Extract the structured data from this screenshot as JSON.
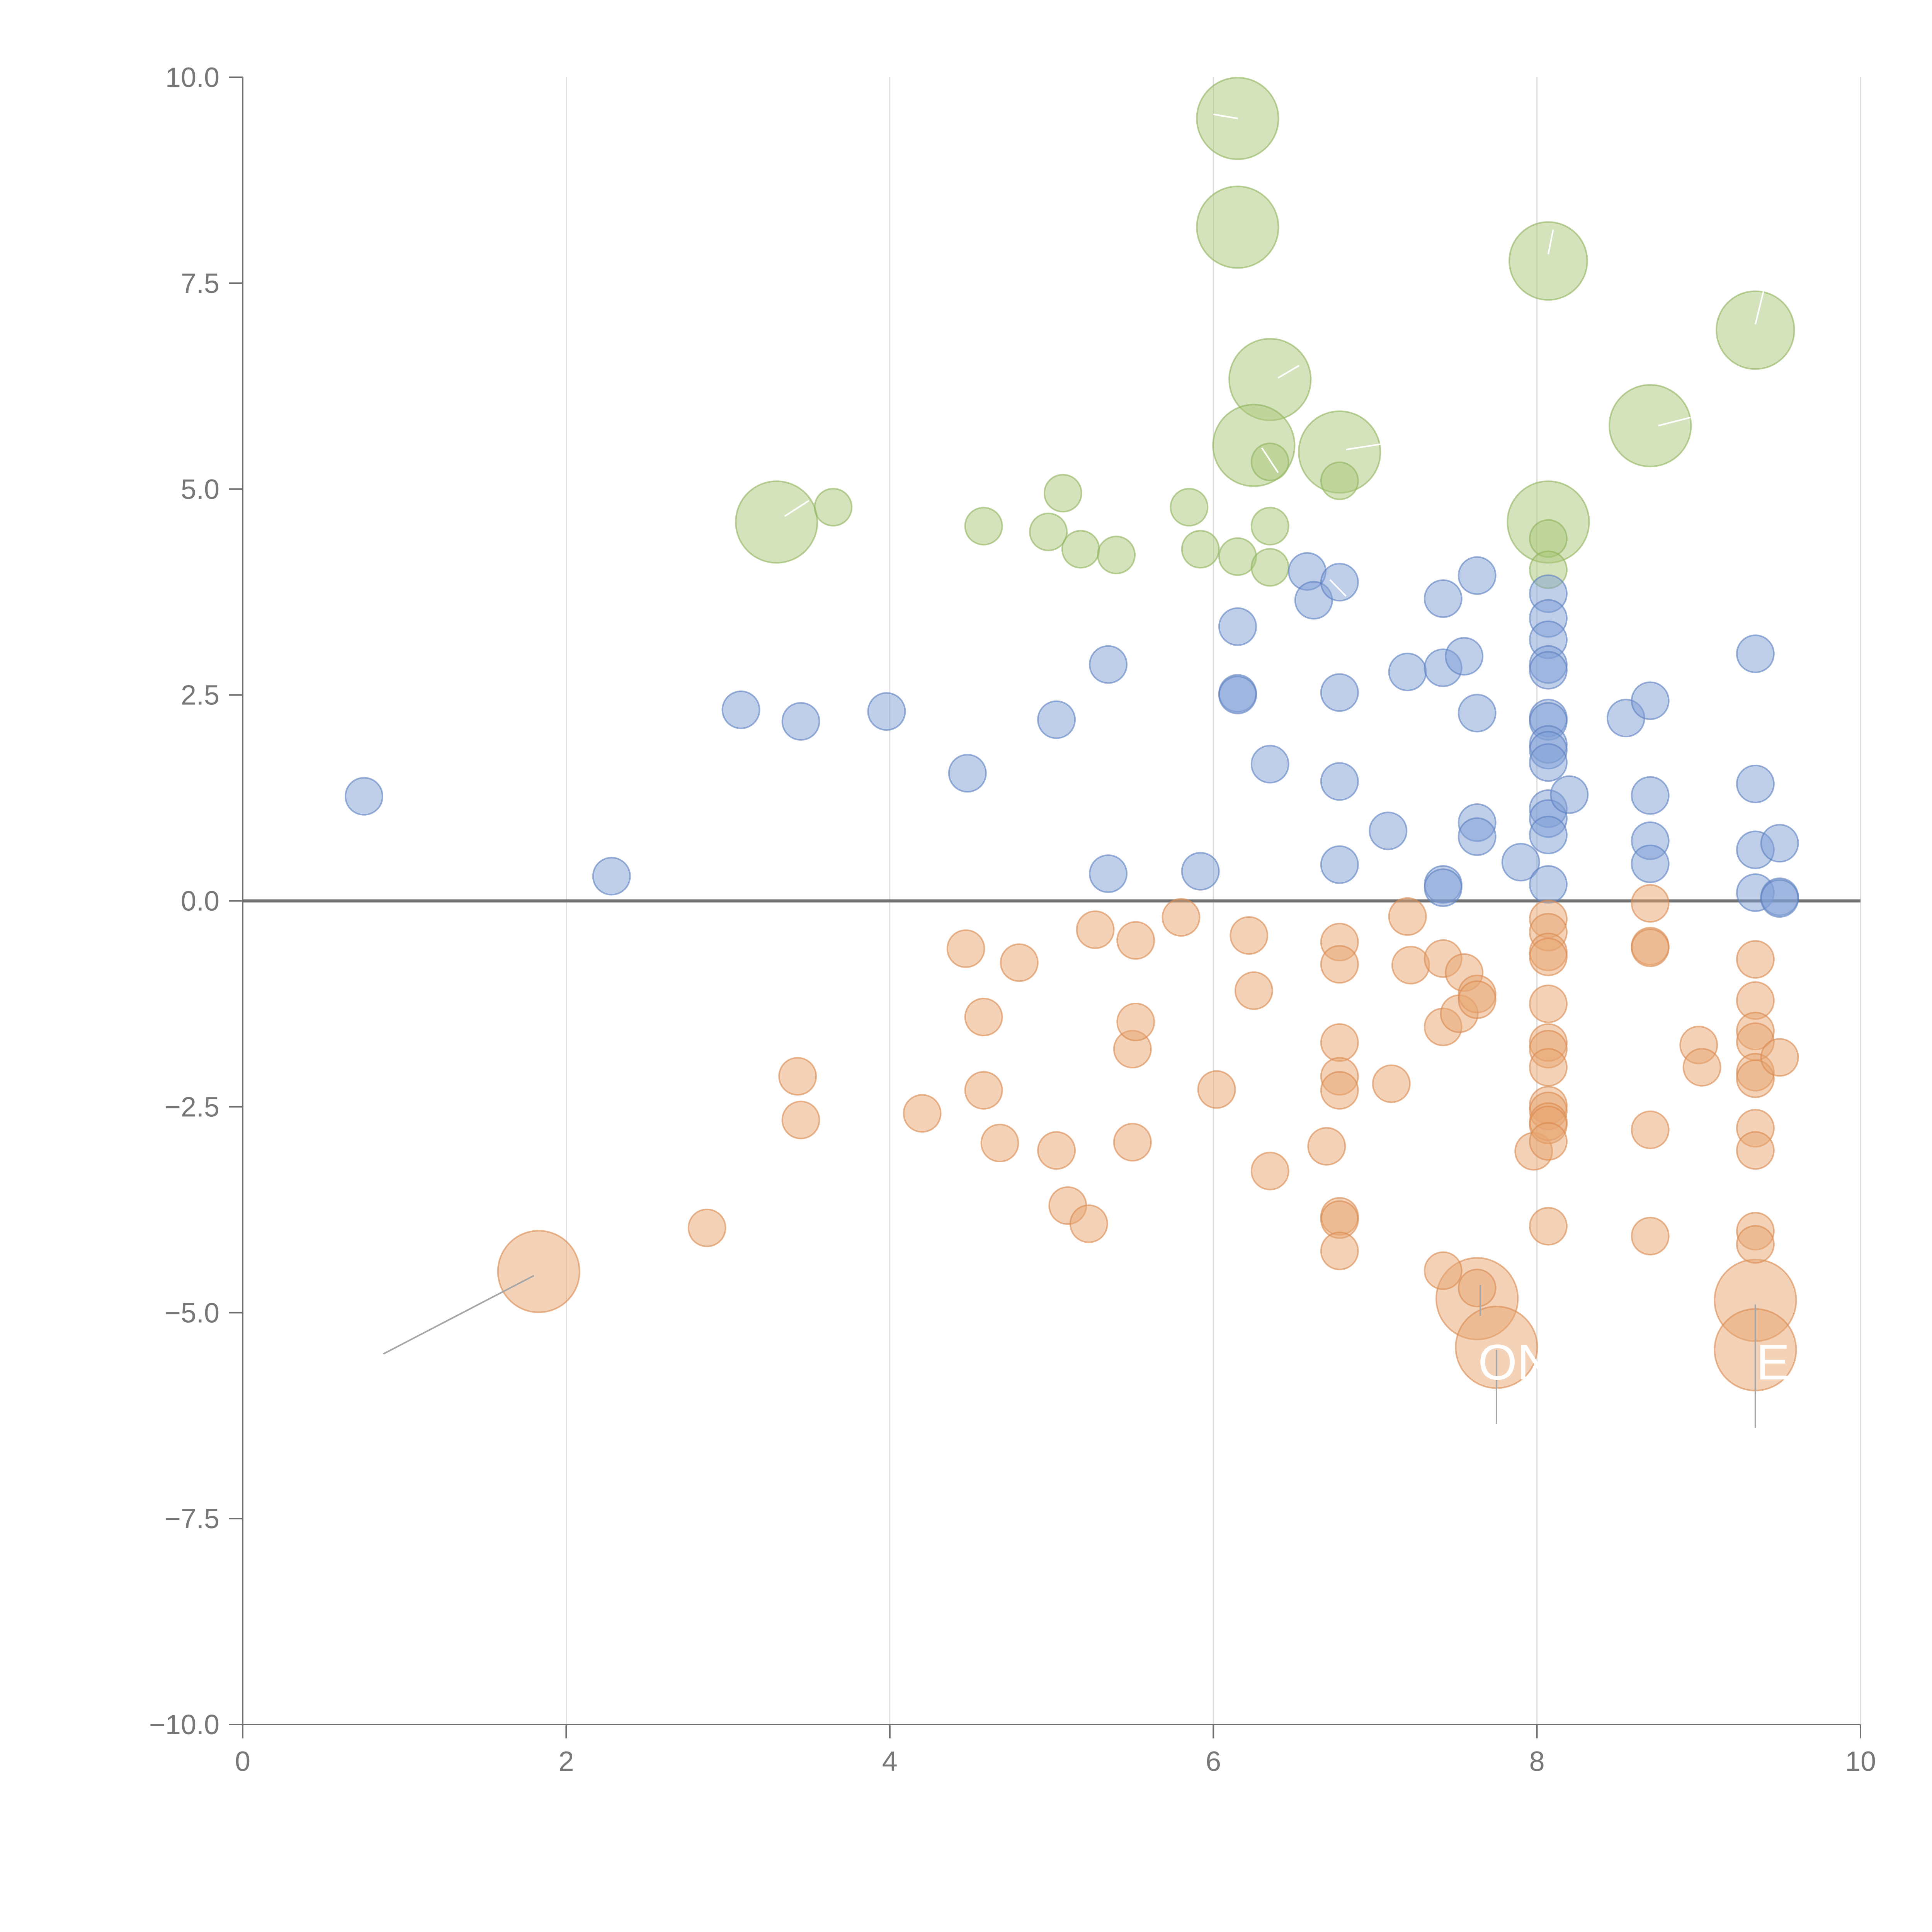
{
  "chart_data": {
    "type": "scatter",
    "title": "",
    "xlabel": "",
    "ylabel": "",
    "xlim": [
      0,
      10
    ],
    "ylim": [
      -10,
      10
    ],
    "grid": {
      "vertical": true,
      "horizontal": false
    },
    "x_ticks": [
      0,
      2,
      4,
      6,
      8,
      10
    ],
    "y_ticks": [
      10,
      7.5,
      5,
      2.5,
      0,
      -2.5,
      -5,
      -7.5,
      -10
    ],
    "x_tick_labels": [
      "0",
      "2",
      "4",
      "6",
      "8",
      "10"
    ],
    "y_tick_labels": [
      "10.0",
      "7.5",
      "5.0",
      "2.5",
      "0.0",
      "−2.5",
      "−5.0",
      "−7.5",
      "−10.0"
    ],
    "reference_line_y": 0,
    "series": [
      {
        "name": "green",
        "color": "#a9c779",
        "stroke": "#8fb35c",
        "points": [
          [
            6.15,
            9.5,
            2.2
          ],
          [
            6.15,
            8.18,
            2.2
          ],
          [
            8.07,
            7.77,
            2.1
          ],
          [
            9.35,
            6.93,
            2.1
          ],
          [
            6.35,
            6.33,
            2.2
          ],
          [
            8.7,
            5.77,
            2.2
          ],
          [
            6.25,
            5.53,
            2.2
          ],
          [
            6.78,
            5.45,
            2.2
          ],
          [
            3.3,
            4.6,
            2.2
          ],
          [
            8.07,
            4.6,
            2.2
          ],
          [
            6.35,
            5.33,
            1.0
          ],
          [
            6.78,
            5.1,
            1.0
          ],
          [
            3.65,
            4.78,
            1.0
          ],
          [
            5.07,
            4.95,
            1.0
          ],
          [
            5.85,
            4.78,
            1.0
          ],
          [
            4.58,
            4.55,
            1.0
          ],
          [
            4.98,
            4.48,
            1.0
          ],
          [
            5.18,
            4.27,
            1.0
          ],
          [
            5.4,
            4.2,
            1.0
          ],
          [
            5.92,
            4.27,
            1.0
          ],
          [
            6.15,
            4.18,
            1.0
          ],
          [
            6.35,
            4.55,
            1.0
          ],
          [
            6.35,
            4.05,
            1.0
          ],
          [
            8.07,
            4.4,
            1.0
          ],
          [
            8.07,
            4.02,
            1.0
          ]
        ]
      },
      {
        "name": "blue",
        "color": "#7f9fd6",
        "stroke": "#5c7fc0",
        "points": [
          [
            0.75,
            1.27,
            1.0
          ],
          [
            2.28,
            0.3,
            1.0
          ],
          [
            3.08,
            2.32,
            1.0
          ],
          [
            3.45,
            2.18,
            1.0
          ],
          [
            3.98,
            2.3,
            1.0
          ],
          [
            4.48,
            1.55,
            1.0
          ],
          [
            5.03,
            2.2,
            1.0
          ],
          [
            5.35,
            2.87,
            1.0
          ],
          [
            5.35,
            0.33,
            1.0
          ],
          [
            5.92,
            0.36,
            1.0
          ],
          [
            6.15,
            3.33,
            1.0
          ],
          [
            6.15,
            2.52,
            1.0
          ],
          [
            6.15,
            2.5,
            1.0
          ],
          [
            6.35,
            1.66,
            1.0
          ],
          [
            6.58,
            4.0,
            1.0
          ],
          [
            6.62,
            3.65,
            1.0
          ],
          [
            6.78,
            3.87,
            1.0
          ],
          [
            6.78,
            2.53,
            1.0
          ],
          [
            6.78,
            1.45,
            1.0
          ],
          [
            6.78,
            0.44,
            1.0
          ],
          [
            7.08,
            0.85,
            1.0
          ],
          [
            7.2,
            2.78,
            1.0
          ],
          [
            7.42,
            3.67,
            1.0
          ],
          [
            7.42,
            2.83,
            1.0
          ],
          [
            7.42,
            0.2,
            1.0
          ],
          [
            7.42,
            0.16,
            1.0
          ],
          [
            7.55,
            2.97,
            1.0
          ],
          [
            7.63,
            3.95,
            1.0
          ],
          [
            7.63,
            2.28,
            1.0
          ],
          [
            7.63,
            0.95,
            1.0
          ],
          [
            7.63,
            0.78,
            1.0
          ],
          [
            7.9,
            0.47,
            1.0
          ],
          [
            8.07,
            3.73,
            1.0
          ],
          [
            8.07,
            3.43,
            1.0
          ],
          [
            8.07,
            3.17,
            1.0
          ],
          [
            8.07,
            2.87,
            1.0
          ],
          [
            8.07,
            2.8,
            1.0
          ],
          [
            8.07,
            2.22,
            1.0
          ],
          [
            8.07,
            2.18,
            1.0
          ],
          [
            8.07,
            1.9,
            1.0
          ],
          [
            8.07,
            1.83,
            1.0
          ],
          [
            8.07,
            1.68,
            1.0
          ],
          [
            8.07,
            1.12,
            1.0
          ],
          [
            8.07,
            1.0,
            1.0
          ],
          [
            8.07,
            0.8,
            1.0
          ],
          [
            8.07,
            0.2,
            1.0
          ],
          [
            8.2,
            1.29,
            1.0
          ],
          [
            8.55,
            2.22,
            1.0
          ],
          [
            8.7,
            2.43,
            1.0
          ],
          [
            8.7,
            1.28,
            1.0
          ],
          [
            8.7,
            0.73,
            1.0
          ],
          [
            8.7,
            0.45,
            1.0
          ],
          [
            9.35,
            3.0,
            1.0
          ],
          [
            9.35,
            1.42,
            1.0
          ],
          [
            9.35,
            0.62,
            1.0
          ],
          [
            9.35,
            0.1,
            1.0
          ],
          [
            9.5,
            0.7,
            1.0
          ],
          [
            9.5,
            0.05,
            1.0
          ],
          [
            9.5,
            0.03,
            1.0
          ]
        ]
      },
      {
        "name": "orange",
        "color": "#e8a671",
        "stroke": "#d9894f",
        "points": [
          [
            1.83,
            -4.5,
            2.2
          ],
          [
            7.63,
            -4.83,
            2.2
          ],
          [
            7.75,
            -5.42,
            2.2
          ],
          [
            9.35,
            -4.85,
            2.2
          ],
          [
            9.35,
            -5.45,
            2.2
          ],
          [
            2.87,
            -3.97,
            1.0
          ],
          [
            3.43,
            -2.13,
            1.0
          ],
          [
            3.45,
            -2.66,
            1.0
          ],
          [
            4.2,
            -2.58,
            1.0
          ],
          [
            4.47,
            -0.58,
            1.0
          ],
          [
            4.58,
            -1.41,
            1.0
          ],
          [
            4.58,
            -2.3,
            1.0
          ],
          [
            4.68,
            -2.94,
            1.0
          ],
          [
            4.8,
            -0.75,
            1.0
          ],
          [
            5.03,
            -3.03,
            1.0
          ],
          [
            5.1,
            -3.7,
            1.0
          ],
          [
            5.23,
            -3.92,
            1.0
          ],
          [
            5.27,
            -0.35,
            1.0
          ],
          [
            5.5,
            -2.93,
            1.0
          ],
          [
            5.5,
            -1.8,
            1.0
          ],
          [
            5.52,
            -1.47,
            1.0
          ],
          [
            5.52,
            -0.48,
            1.0
          ],
          [
            5.8,
            -0.2,
            1.0
          ],
          [
            6.02,
            -2.29,
            1.0
          ],
          [
            6.22,
            -0.42,
            1.0
          ],
          [
            6.25,
            -1.09,
            1.0
          ],
          [
            6.35,
            -3.28,
            1.0
          ],
          [
            6.7,
            -2.98,
            1.0
          ],
          [
            6.78,
            -0.5,
            1.0
          ],
          [
            6.78,
            -0.77,
            1.0
          ],
          [
            6.78,
            -1.72,
            1.0
          ],
          [
            6.78,
            -2.13,
            1.0
          ],
          [
            6.78,
            -2.3,
            1.0
          ],
          [
            6.78,
            -3.83,
            1.0
          ],
          [
            6.78,
            -3.87,
            1.0
          ],
          [
            6.78,
            -4.25,
            1.0
          ],
          [
            7.1,
            -2.22,
            1.0
          ],
          [
            7.2,
            -0.19,
            1.0
          ],
          [
            7.22,
            -0.78,
            1.0
          ],
          [
            7.42,
            -0.7,
            1.0
          ],
          [
            7.42,
            -1.53,
            1.0
          ],
          [
            7.42,
            -4.49,
            1.0
          ],
          [
            7.52,
            -1.37,
            1.0
          ],
          [
            7.55,
            -0.87,
            1.0
          ],
          [
            7.63,
            -1.13,
            1.0
          ],
          [
            7.63,
            -1.2,
            1.0
          ],
          [
            7.63,
            -4.7,
            1.0
          ],
          [
            7.98,
            -3.04,
            1.0
          ],
          [
            8.07,
            -0.22,
            1.0
          ],
          [
            8.07,
            -0.38,
            1.0
          ],
          [
            8.07,
            -0.62,
            1.0
          ],
          [
            8.07,
            -0.68,
            1.0
          ],
          [
            8.07,
            -1.25,
            1.0
          ],
          [
            8.07,
            -1.72,
            1.0
          ],
          [
            8.07,
            -1.8,
            1.0
          ],
          [
            8.07,
            -2.02,
            1.0
          ],
          [
            8.07,
            -2.48,
            1.0
          ],
          [
            8.07,
            -2.55,
            1.0
          ],
          [
            8.07,
            -2.68,
            1.0
          ],
          [
            8.07,
            -2.72,
            1.0
          ],
          [
            8.07,
            -2.92,
            1.0
          ],
          [
            8.07,
            -3.95,
            1.0
          ],
          [
            8.7,
            -0.03,
            1.0
          ],
          [
            8.7,
            -0.55,
            1.0
          ],
          [
            8.7,
            -0.57,
            1.0
          ],
          [
            8.7,
            -2.78,
            1.0
          ],
          [
            8.7,
            -4.07,
            1.0
          ],
          [
            9.0,
            -1.75,
            1.0
          ],
          [
            9.02,
            -2.02,
            1.0
          ],
          [
            9.35,
            -0.71,
            1.0
          ],
          [
            9.35,
            -1.21,
            1.0
          ],
          [
            9.35,
            -1.58,
            1.0
          ],
          [
            9.35,
            -1.71,
            1.0
          ],
          [
            9.35,
            -2.08,
            1.0
          ],
          [
            9.35,
            -2.16,
            1.0
          ],
          [
            9.35,
            -2.76,
            1.0
          ],
          [
            9.35,
            -3.03,
            1.0
          ],
          [
            9.35,
            -4.01,
            1.0
          ],
          [
            9.35,
            -4.17,
            1.0
          ],
          [
            9.5,
            -1.9,
            1.0
          ]
        ]
      }
    ],
    "callouts": [
      {
        "from": [
          1.8,
          -4.55
        ],
        "to": [
          0.87,
          -5.5
        ],
        "color": "#a6a6a6",
        "text": ""
      },
      {
        "from": [
          7.65,
          -4.85
        ],
        "to": [
          7.65,
          -4.85
        ],
        "color": "#a6a6a6",
        "text": ""
      },
      {
        "from": [
          7.75,
          -5.45
        ],
        "to": [
          7.75,
          -6.35
        ],
        "color": "#a6a6a6",
        "text": ""
      },
      {
        "from": [
          9.35,
          -4.9
        ],
        "to": [
          9.35,
          -6.4
        ],
        "color": "#a6a6a6",
        "text": ""
      },
      {
        "from": [
          3.35,
          4.67
        ],
        "to": [
          3.5,
          4.86
        ],
        "color": "#ffffff",
        "text": ""
      },
      {
        "from": [
          6.0,
          9.55
        ],
        "to": [
          6.15,
          9.5
        ],
        "color": "#ffffff",
        "text": ""
      },
      {
        "from": [
          8.07,
          7.85
        ],
        "to": [
          8.1,
          8.15
        ],
        "color": "#ffffff",
        "text": ""
      },
      {
        "from": [
          9.35,
          7.0
        ],
        "to": [
          9.4,
          7.4
        ],
        "color": "#ffffff",
        "text": ""
      },
      {
        "from": [
          6.4,
          6.35
        ],
        "to": [
          6.53,
          6.5
        ],
        "color": "#ffffff",
        "text": ""
      },
      {
        "from": [
          8.75,
          5.77
        ],
        "to": [
          8.95,
          5.87
        ],
        "color": "#ffffff",
        "text": ""
      },
      {
        "from": [
          6.3,
          5.5
        ],
        "to": [
          6.4,
          5.2
        ],
        "color": "#ffffff",
        "text": ""
      },
      {
        "from": [
          6.82,
          5.48
        ],
        "to": [
          7.05,
          5.55
        ],
        "color": "#ffffff",
        "text": ""
      },
      {
        "from": [
          6.72,
          3.9
        ],
        "to": [
          6.82,
          3.7
        ],
        "color": "#ffffff",
        "text": ""
      }
    ],
    "callout_texts": [
      "ON",
      "E"
    ]
  }
}
